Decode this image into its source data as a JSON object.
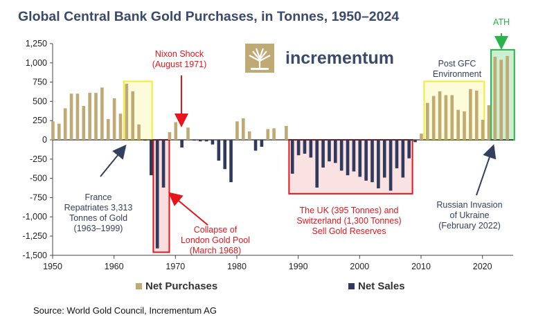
{
  "chart_data": {
    "type": "bar",
    "title": "Global Central Bank Gold Purchases, in Tonnes, 1950–2024",
    "xlabel": "",
    "ylabel": "",
    "xlim": [
      1950,
      2025
    ],
    "ylim": [
      -1500,
      1250
    ],
    "x_ticks": [
      "1950",
      "1960",
      "1970",
      "1980",
      "1990",
      "2000",
      "2010",
      "2020"
    ],
    "y_ticks": [
      "1,250",
      "1,000",
      "750",
      "500",
      "250",
      "0",
      "-250",
      "-500",
      "-750",
      "-1,000",
      "-1,250",
      "-1,500"
    ],
    "years": [
      1950,
      1951,
      1952,
      1953,
      1954,
      1955,
      1956,
      1957,
      1958,
      1959,
      1960,
      1961,
      1962,
      1963,
      1964,
      1965,
      1966,
      1967,
      1968,
      1969,
      1970,
      1971,
      1972,
      1973,
      1974,
      1975,
      1976,
      1977,
      1978,
      1979,
      1980,
      1981,
      1982,
      1983,
      1984,
      1985,
      1986,
      1987,
      1988,
      1989,
      1990,
      1991,
      1992,
      1993,
      1994,
      1995,
      1996,
      1997,
      1998,
      1999,
      2000,
      2001,
      2002,
      2003,
      2004,
      2005,
      2006,
      2007,
      2008,
      2009,
      2010,
      2011,
      2012,
      2013,
      2014,
      2015,
      2016,
      2017,
      2018,
      2019,
      2020,
      2021,
      2022,
      2023,
      2024
    ],
    "values": [
      240,
      210,
      410,
      600,
      600,
      440,
      610,
      610,
      680,
      270,
      540,
      340,
      730,
      630,
      200,
      -10,
      -460,
      -1410,
      -620,
      100,
      230,
      -100,
      160,
      -10,
      -20,
      -20,
      -60,
      -270,
      -380,
      -550,
      240,
      280,
      110,
      -140,
      -90,
      140,
      150,
      0,
      180,
      -440,
      -200,
      -180,
      -230,
      -620,
      -360,
      -280,
      -300,
      -400,
      -460,
      -410,
      -480,
      -530,
      -550,
      -630,
      -490,
      -660,
      -370,
      -490,
      -240,
      -30,
      80,
      480,
      570,
      630,
      580,
      580,
      390,
      370,
      660,
      640,
      260,
      450,
      1080,
      1040,
      1090
    ],
    "series": [
      {
        "name": "Net Purchases",
        "color": "#bfa975"
      },
      {
        "name": "Net Sales",
        "color": "#2f3a5c"
      }
    ],
    "annotations": {
      "nixon": [
        "Nixon Shock",
        "(August 1971)"
      ],
      "france": [
        "France",
        "Repatriates 3,313",
        "Tonnes of Gold",
        "(1963–1999)"
      ],
      "london": [
        "Collapse of",
        "London Gold Pool",
        "(March 1968)"
      ],
      "uk": [
        "The UK (395 Tonnes) and",
        "Switzerland (1,300 Tonnes)",
        "Sell Gold Reserves"
      ],
      "gfc": [
        "Post GFC",
        "Environment"
      ],
      "russia": [
        "Russian Invasion",
        "of Ukraine",
        "(February 2022)"
      ],
      "ath": "ATH"
    },
    "legend_position": "bottom"
  },
  "logo": {
    "text": "incrementum"
  },
  "source": "Source: World Gold Council, Incrementum AG",
  "colors": {
    "purchases": "#bfa975",
    "sales": "#2f3a5c",
    "title": "#3b4a6b",
    "red": "#e8141b",
    "green": "#28b34b",
    "yellow": "#f0ec3a"
  }
}
